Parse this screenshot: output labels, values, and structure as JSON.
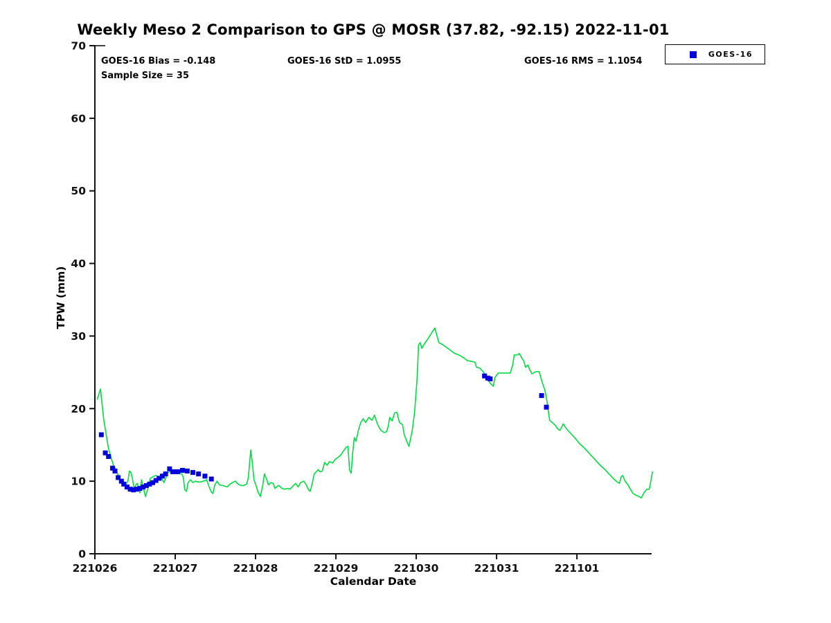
{
  "header": {
    "title": "Weekly Meso 2 Comparison to GPS @ MOSR (37.82, -92.15) 2022-11-01"
  },
  "stats": {
    "bias": "GOES-16 Bias = -0.148",
    "std": "GOES-16 StD = 1.0955",
    "rms": "GOES-16 RMS = 1.1054",
    "sample": "Sample Size = 35"
  },
  "legend": {
    "label": "GOES-16",
    "swatch_color": "#0000dd"
  },
  "chart_data": {
    "type": "line",
    "title": "Weekly Meso 2 Comparison to GPS @ MOSR (37.82, -92.15) 2022-11-01",
    "xlabel": "Calendar Date",
    "ylabel": "TPW (mm)",
    "ylim": [
      0,
      70
    ],
    "y_ticks": [
      0,
      10,
      20,
      30,
      40,
      50,
      60,
      70
    ],
    "x_tick_labels": [
      "221026",
      "221027",
      "221028",
      "221029",
      "221030",
      "221031",
      "221101"
    ],
    "x_tick_days": [
      0,
      1,
      2,
      3,
      4,
      5,
      6
    ],
    "xlim_days": [
      0,
      6.93
    ],
    "grid": false,
    "legend_position": "top-right",
    "line_color": "#00dd40",
    "marker_color": "#0000dd",
    "series": [
      {
        "name": "GPS",
        "style": "line",
        "points": [
          [
            0.03,
            21.3
          ],
          [
            0.07,
            22.7
          ],
          [
            0.11,
            18.5
          ],
          [
            0.14,
            16.5
          ],
          [
            0.17,
            14.5
          ],
          [
            0.2,
            13.3
          ],
          [
            0.23,
            12.2
          ],
          [
            0.26,
            11.6
          ],
          [
            0.3,
            10.6
          ],
          [
            0.33,
            10.0
          ],
          [
            0.36,
            9.7
          ],
          [
            0.38,
            9.4
          ],
          [
            0.41,
            10.0
          ],
          [
            0.43,
            11.4
          ],
          [
            0.45,
            11.2
          ],
          [
            0.47,
            10.2
          ],
          [
            0.49,
            8.9
          ],
          [
            0.51,
            9.5
          ],
          [
            0.53,
            9.7
          ],
          [
            0.56,
            8.4
          ],
          [
            0.58,
            10.2
          ],
          [
            0.6,
            9.2
          ],
          [
            0.63,
            7.9
          ],
          [
            0.66,
            9.0
          ],
          [
            0.69,
            10.4
          ],
          [
            0.72,
            10.6
          ],
          [
            0.76,
            10.8
          ],
          [
            0.79,
            10.5
          ],
          [
            0.83,
            10.4
          ],
          [
            0.86,
            9.8
          ],
          [
            0.88,
            10.4
          ],
          [
            0.91,
            11.2
          ],
          [
            0.94,
            11.3
          ],
          [
            0.97,
            11.2
          ],
          [
            1.01,
            11.4
          ],
          [
            1.04,
            11.2
          ],
          [
            1.08,
            11.0
          ],
          [
            1.1,
            10.6
          ],
          [
            1.12,
            8.8
          ],
          [
            1.14,
            8.6
          ],
          [
            1.16,
            9.8
          ],
          [
            1.19,
            10.2
          ],
          [
            1.22,
            9.8
          ],
          [
            1.25,
            10.0
          ],
          [
            1.28,
            9.9
          ],
          [
            1.32,
            9.9
          ],
          [
            1.35,
            10.0
          ],
          [
            1.39,
            10.2
          ],
          [
            1.42,
            9.3
          ],
          [
            1.45,
            8.5
          ],
          [
            1.47,
            8.3
          ],
          [
            1.49,
            9.4
          ],
          [
            1.52,
            10.0
          ],
          [
            1.55,
            9.5
          ],
          [
            1.59,
            9.4
          ],
          [
            1.62,
            9.3
          ],
          [
            1.65,
            9.2
          ],
          [
            1.67,
            9.5
          ],
          [
            1.71,
            9.8
          ],
          [
            1.75,
            10.0
          ],
          [
            1.78,
            9.6
          ],
          [
            1.82,
            9.4
          ],
          [
            1.85,
            9.4
          ],
          [
            1.89,
            9.6
          ],
          [
            1.91,
            10.5
          ],
          [
            1.94,
            14.3
          ],
          [
            1.96,
            12.5
          ],
          [
            1.98,
            10.2
          ],
          [
            2.01,
            9.3
          ],
          [
            2.03,
            8.5
          ],
          [
            2.06,
            7.9
          ],
          [
            2.09,
            9.5
          ],
          [
            2.11,
            11.0
          ],
          [
            2.14,
            10.2
          ],
          [
            2.16,
            9.5
          ],
          [
            2.19,
            9.8
          ],
          [
            2.22,
            9.7
          ],
          [
            2.24,
            9.0
          ],
          [
            2.27,
            9.3
          ],
          [
            2.29,
            9.4
          ],
          [
            2.33,
            9.0
          ],
          [
            2.36,
            8.9
          ],
          [
            2.4,
            9.0
          ],
          [
            2.43,
            8.9
          ],
          [
            2.47,
            9.4
          ],
          [
            2.5,
            9.7
          ],
          [
            2.53,
            9.2
          ],
          [
            2.56,
            9.8
          ],
          [
            2.6,
            10.0
          ],
          [
            2.62,
            9.7
          ],
          [
            2.66,
            8.8
          ],
          [
            2.68,
            8.6
          ],
          [
            2.71,
            9.9
          ],
          [
            2.73,
            11.0
          ],
          [
            2.78,
            11.6
          ],
          [
            2.8,
            11.3
          ],
          [
            2.83,
            11.4
          ],
          [
            2.86,
            12.6
          ],
          [
            2.89,
            12.2
          ],
          [
            2.92,
            12.7
          ],
          [
            2.96,
            12.5
          ],
          [
            2.99,
            13.0
          ],
          [
            3.03,
            13.3
          ],
          [
            3.06,
            13.6
          ],
          [
            3.09,
            14.1
          ],
          [
            3.13,
            14.7
          ],
          [
            3.15,
            14.8
          ],
          [
            3.17,
            11.5
          ],
          [
            3.19,
            11.1
          ],
          [
            3.21,
            14.0
          ],
          [
            3.23,
            16.0
          ],
          [
            3.25,
            15.5
          ],
          [
            3.28,
            17.0
          ],
          [
            3.31,
            18.1
          ],
          [
            3.34,
            18.6
          ],
          [
            3.37,
            18.1
          ],
          [
            3.41,
            18.8
          ],
          [
            3.45,
            18.4
          ],
          [
            3.48,
            19.1
          ],
          [
            3.52,
            17.8
          ],
          [
            3.56,
            17.0
          ],
          [
            3.6,
            16.7
          ],
          [
            3.63,
            16.8
          ],
          [
            3.65,
            17.5
          ],
          [
            3.67,
            18.8
          ],
          [
            3.7,
            18.3
          ],
          [
            3.73,
            19.4
          ],
          [
            3.76,
            19.5
          ],
          [
            3.79,
            18.1
          ],
          [
            3.83,
            17.8
          ],
          [
            3.85,
            16.4
          ],
          [
            3.89,
            15.3
          ],
          [
            3.91,
            14.8
          ],
          [
            3.95,
            17.0
          ],
          [
            3.98,
            19.5
          ],
          [
            4.01,
            24.0
          ],
          [
            4.03,
            28.8
          ],
          [
            4.05,
            29.1
          ],
          [
            4.07,
            28.3
          ],
          [
            4.1,
            28.9
          ],
          [
            4.15,
            29.7
          ],
          [
            4.19,
            30.4
          ],
          [
            4.23,
            31.1
          ],
          [
            4.26,
            30.0
          ],
          [
            4.28,
            29.1
          ],
          [
            4.33,
            28.8
          ],
          [
            4.38,
            28.4
          ],
          [
            4.43,
            28.0
          ],
          [
            4.48,
            27.6
          ],
          [
            4.53,
            27.4
          ],
          [
            4.59,
            27.0
          ],
          [
            4.64,
            26.6
          ],
          [
            4.69,
            26.5
          ],
          [
            4.73,
            26.4
          ],
          [
            4.75,
            25.7
          ],
          [
            4.79,
            25.6
          ],
          [
            4.84,
            25.0
          ],
          [
            4.88,
            24.3
          ],
          [
            4.92,
            23.5
          ],
          [
            4.96,
            23.1
          ],
          [
            4.98,
            24.3
          ],
          [
            5.02,
            24.9
          ],
          [
            5.07,
            24.9
          ],
          [
            5.12,
            24.9
          ],
          [
            5.17,
            24.9
          ],
          [
            5.2,
            26.0
          ],
          [
            5.22,
            27.4
          ],
          [
            5.26,
            27.4
          ],
          [
            5.28,
            27.6
          ],
          [
            5.32,
            26.9
          ],
          [
            5.34,
            26.5
          ],
          [
            5.36,
            25.7
          ],
          [
            5.39,
            26.0
          ],
          [
            5.41,
            25.4
          ],
          [
            5.44,
            24.8
          ],
          [
            5.47,
            25.0
          ],
          [
            5.5,
            25.1
          ],
          [
            5.53,
            25.1
          ],
          [
            5.56,
            23.9
          ],
          [
            5.58,
            23.2
          ],
          [
            5.6,
            22.6
          ],
          [
            5.62,
            21.5
          ],
          [
            5.64,
            20.0
          ],
          [
            5.66,
            18.4
          ],
          [
            5.7,
            18.0
          ],
          [
            5.73,
            17.7
          ],
          [
            5.76,
            17.2
          ],
          [
            5.79,
            17.0
          ],
          [
            5.83,
            17.9
          ],
          [
            5.87,
            17.2
          ],
          [
            5.93,
            16.5
          ],
          [
            5.98,
            15.9
          ],
          [
            6.03,
            15.2
          ],
          [
            6.09,
            14.6
          ],
          [
            6.14,
            14.0
          ],
          [
            6.19,
            13.4
          ],
          [
            6.24,
            12.8
          ],
          [
            6.29,
            12.2
          ],
          [
            6.35,
            11.6
          ],
          [
            6.4,
            11.0
          ],
          [
            6.45,
            10.4
          ],
          [
            6.5,
            9.9
          ],
          [
            6.53,
            9.7
          ],
          [
            6.55,
            10.6
          ],
          [
            6.57,
            10.8
          ],
          [
            6.6,
            10.0
          ],
          [
            6.64,
            9.4
          ],
          [
            6.67,
            8.8
          ],
          [
            6.7,
            8.3
          ],
          [
            6.73,
            8.1
          ],
          [
            6.77,
            7.9
          ],
          [
            6.8,
            7.7
          ],
          [
            6.84,
            8.5
          ],
          [
            6.87,
            8.9
          ],
          [
            6.9,
            8.9
          ],
          [
            6.92,
            10.0
          ],
          [
            6.94,
            11.3
          ]
        ]
      },
      {
        "name": "GOES-16",
        "style": "scatter-square",
        "points": [
          [
            0.08,
            16.4
          ],
          [
            0.13,
            13.9
          ],
          [
            0.17,
            13.4
          ],
          [
            0.22,
            11.8
          ],
          [
            0.25,
            11.4
          ],
          [
            0.29,
            10.5
          ],
          [
            0.33,
            10.0
          ],
          [
            0.36,
            9.6
          ],
          [
            0.4,
            9.2
          ],
          [
            0.44,
            8.9
          ],
          [
            0.48,
            8.8
          ],
          [
            0.52,
            8.9
          ],
          [
            0.56,
            9.0
          ],
          [
            0.6,
            9.2
          ],
          [
            0.64,
            9.4
          ],
          [
            0.68,
            9.6
          ],
          [
            0.72,
            9.8
          ],
          [
            0.76,
            10.1
          ],
          [
            0.8,
            10.4
          ],
          [
            0.84,
            10.7
          ],
          [
            0.88,
            11.0
          ],
          [
            0.93,
            11.7
          ],
          [
            0.97,
            11.3
          ],
          [
            1.03,
            11.3
          ],
          [
            1.09,
            11.5
          ],
          [
            1.15,
            11.4
          ],
          [
            1.22,
            11.2
          ],
          [
            1.29,
            11.0
          ],
          [
            1.37,
            10.7
          ],
          [
            1.45,
            10.3
          ],
          [
            4.85,
            24.5
          ],
          [
            4.89,
            24.2
          ],
          [
            4.92,
            24.1
          ],
          [
            5.56,
            21.8
          ],
          [
            5.62,
            20.2
          ]
        ]
      }
    ]
  }
}
